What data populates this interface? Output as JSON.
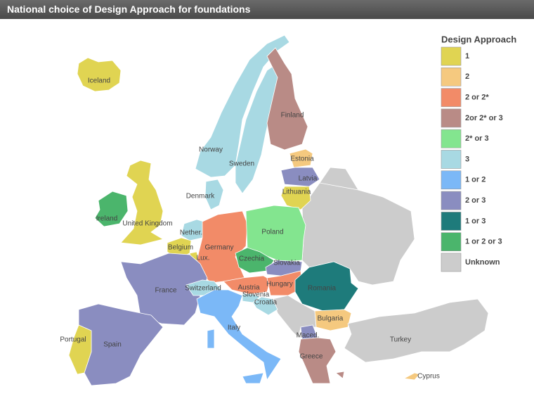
{
  "title": "National choice of Design Approach for foundations",
  "legend": {
    "title": "Design Approach",
    "items": [
      {
        "label": "1",
        "color": "#e0d452"
      },
      {
        "label": "2",
        "color": "#f5c97f"
      },
      {
        "label": "2 or 2*",
        "color": "#f28b68"
      },
      {
        "label": "2or 2* or 3",
        "color": "#b98b86"
      },
      {
        "label": "2* or 3",
        "color": "#83e58f"
      },
      {
        "label": "3",
        "color": "#a8d9e3"
      },
      {
        "label": "1 or 2",
        "color": "#7bb8f7"
      },
      {
        "label": "2 or 3",
        "color": "#8a8dc0"
      },
      {
        "label": "1 or 3",
        "color": "#1e7b7b"
      },
      {
        "label": "1 or 2 or 3",
        "color": "#4bb56c"
      },
      {
        "label": "Unknown",
        "color": "#cccccc"
      }
    ]
  },
  "countries": [
    {
      "name": "Iceland",
      "color": "#e0d452"
    },
    {
      "name": "Ireland",
      "color": "#4bb56c"
    },
    {
      "name": "United Kingdom",
      "color": "#e0d452"
    },
    {
      "name": "Norway",
      "color": "#a8d9e3"
    },
    {
      "name": "Sweden",
      "color": "#a8d9e3"
    },
    {
      "name": "Finland",
      "color": "#b98b86"
    },
    {
      "name": "Denmark",
      "color": "#a8d9e3"
    },
    {
      "name": "Estonia",
      "color": "#f5c97f"
    },
    {
      "name": "Latvia",
      "color": "#8a8dc0"
    },
    {
      "name": "Lithuania",
      "color": "#e0d452"
    },
    {
      "name": "Nether.",
      "color": "#a8d9e3"
    },
    {
      "name": "Belgium",
      "color": "#e0d452"
    },
    {
      "name": "Lux.",
      "color": "#e0d452"
    },
    {
      "name": "Germany",
      "color": "#f28b68"
    },
    {
      "name": "Poland",
      "color": "#83e58f"
    },
    {
      "name": "Czechia",
      "color": "#4bb56c"
    },
    {
      "name": "Slovakia",
      "color": "#8a8dc0"
    },
    {
      "name": "Austria",
      "color": "#f28b68"
    },
    {
      "name": "Hungary",
      "color": "#f28b68"
    },
    {
      "name": "Slovenia",
      "color": "#a8d9e3"
    },
    {
      "name": "Croatia",
      "color": "#a8d9e3"
    },
    {
      "name": "France",
      "color": "#8a8dc0"
    },
    {
      "name": "Switzerland",
      "color": "#a8d9e3"
    },
    {
      "name": "Italy",
      "color": "#7bb8f7"
    },
    {
      "name": "Spain",
      "color": "#8a8dc0"
    },
    {
      "name": "Portugal",
      "color": "#e0d452"
    },
    {
      "name": "Romania",
      "color": "#1e7b7b"
    },
    {
      "name": "Bulgaria",
      "color": "#f5c97f"
    },
    {
      "name": "Maced.",
      "color": "#8a8dc0"
    },
    {
      "name": "Greece",
      "color": "#b98b86"
    },
    {
      "name": "Turkey",
      "color": "#cccccc"
    },
    {
      "name": "Cyprus",
      "color": "#f5c97f"
    }
  ]
}
